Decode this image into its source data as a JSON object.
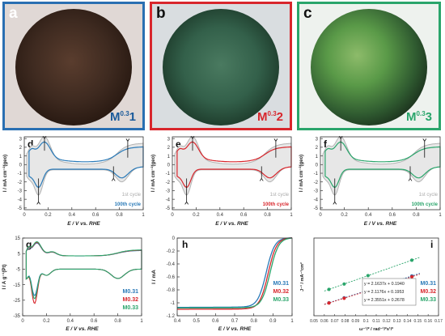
{
  "photos": [
    {
      "letter": "a",
      "label_main": "M",
      "label_sup": "0.3",
      "label_num": "1",
      "frame_color": "#2a6fb2",
      "label_color": "#1a5a9a",
      "disk_inner": "#4a3326",
      "disk_outer": "#2a1a12",
      "bg": "#e0d8d5"
    },
    {
      "letter": "b",
      "label_main": "M",
      "label_sup": "0.3",
      "label_num": "2",
      "frame_color": "#d8262c",
      "label_color": "#d8262c",
      "disk_inner": "#3d6a52",
      "disk_outer": "#1d3a2c",
      "bg": "#d9dde0"
    },
    {
      "letter": "c",
      "label_main": "M",
      "label_sup": "0.3",
      "label_num": "3",
      "frame_color": "#2aa56b",
      "label_color": "#2aa56b",
      "disk_inner": "#5f9a48",
      "disk_outer": "#1a2a1c",
      "bg": "#eef2ee"
    }
  ],
  "cv_panels": [
    {
      "letter": "d",
      "color": "#2a7ab8",
      "legend": [
        "1st cycle",
        "100th cycle"
      ]
    },
    {
      "letter": "e",
      "color": "#d8262c",
      "legend": [
        "1st cycle",
        "100th cycle"
      ]
    },
    {
      "letter": "f",
      "color": "#2aa56b",
      "legend": [
        "1st cycle",
        "100th cycle"
      ]
    }
  ],
  "chart_data": [
    {
      "panel": "d",
      "type": "line",
      "xlabel": "E / V vs. RHE",
      "ylabel": "I / mA cm⁻²(geo)",
      "xlim": [
        0,
        1
      ],
      "xticks": [
        0,
        0.2,
        0.4,
        0.6,
        0.8,
        1
      ],
      "yticks": [
        -5,
        -4,
        -3,
        -2,
        -1,
        0,
        1,
        2,
        3
      ],
      "series": [
        {
          "name": "1st cycle",
          "color": "#b0b0b0"
        },
        {
          "name": "100th cycle",
          "color": "#2a7ab8"
        }
      ]
    },
    {
      "panel": "e",
      "type": "line",
      "xlabel": "E / V vs. RHE",
      "ylabel": "I / mA cm⁻²(geo)",
      "xlim": [
        0,
        1
      ],
      "xticks": [
        0,
        0.2,
        0.4,
        0.6,
        0.8,
        1
      ],
      "yticks": [
        -5,
        -4,
        -3,
        -2,
        -1,
        0,
        1,
        2,
        3
      ],
      "series": [
        {
          "name": "1st cycle",
          "color": "#b0b0b0"
        },
        {
          "name": "100th cycle",
          "color": "#d8262c"
        }
      ]
    },
    {
      "panel": "f",
      "type": "line",
      "xlabel": "E / V vs. RHE",
      "ylabel": "I / mA cm⁻²(geo)",
      "xlim": [
        0,
        1
      ],
      "xticks": [
        0,
        0.2,
        0.4,
        0.6,
        0.8,
        1
      ],
      "yticks": [
        -5,
        -4,
        -3,
        -2,
        -1,
        0,
        1,
        2,
        3
      ],
      "series": [
        {
          "name": "1st cycle",
          "color": "#b0b0b0"
        },
        {
          "name": "100th cycle",
          "color": "#2aa56b"
        }
      ]
    },
    {
      "panel": "g",
      "type": "line",
      "xlabel": "E / V vs. RHE",
      "ylabel": "I / A g⁻¹(Pt)",
      "xlim": [
        0,
        1
      ],
      "xticks": [
        0,
        0.2,
        0.4,
        0.6,
        0.8,
        1
      ],
      "ylim": [
        -35,
        15
      ],
      "yticks": [
        -35,
        -25,
        -15,
        -5,
        5,
        15
      ],
      "series": [
        {
          "name": "M0.31",
          "color": "#2a7ab8",
          "peak_neg": -22
        },
        {
          "name": "M0.32",
          "color": "#d8262c",
          "peak_neg": -27
        },
        {
          "name": "M0.33",
          "color": "#2aa56b",
          "peak_neg": -24
        }
      ]
    },
    {
      "panel": "h",
      "type": "line",
      "xlabel": "E / V vs. RHE",
      "ylabel": "I / mA",
      "xlim": [
        0.4,
        1.0
      ],
      "xticks": [
        0.4,
        0.5,
        0.6,
        0.7,
        0.8,
        0.9,
        1.0
      ],
      "ylim": [
        -1.2,
        0
      ],
      "yticks": [
        -1.2,
        -1.0,
        -0.8,
        -0.6,
        -0.4,
        -0.2,
        0
      ],
      "series": [
        {
          "name": "M0.31",
          "color": "#2a7ab8",
          "limit": -1.07,
          "e_half": 0.865
        },
        {
          "name": "M0.32",
          "color": "#d8262c",
          "limit": -1.1,
          "e_half": 0.875
        },
        {
          "name": "M0.33",
          "color": "#2aa56b",
          "limit": -1.08,
          "e_half": 0.885
        }
      ]
    },
    {
      "panel": "i",
      "type": "scatter",
      "xlabel": "ω⁻¹/² / rad⁻¹/²s¹/²",
      "ylabel": "J⁻¹ / mA⁻¹cm²",
      "xlim": [
        0.05,
        0.17
      ],
      "xticks": [
        0.05,
        0.06,
        0.07,
        0.08,
        0.09,
        0.1,
        0.11,
        0.12,
        0.13,
        0.14,
        0.15,
        0.16,
        0.17
      ],
      "ylim": [
        0.25,
        0.75
      ],
      "x": [
        0.0645,
        0.0791,
        0.1021,
        0.1443
      ],
      "series": [
        {
          "name": "M0.31",
          "color": "#2a7ab8",
          "fit": "y = 2.1637x + 0.1940",
          "slope": 2.1637,
          "intercept": 0.194
        },
        {
          "name": "M0.32",
          "color": "#d8262c",
          "fit": "y = 2.1176x + 0.1953",
          "slope": 2.1176,
          "intercept": 0.1953
        },
        {
          "name": "M0.33",
          "color": "#2aa56b",
          "fit": "y = 2.3551x + 0.2678",
          "slope": 2.3551,
          "intercept": 0.2678
        }
      ]
    }
  ]
}
